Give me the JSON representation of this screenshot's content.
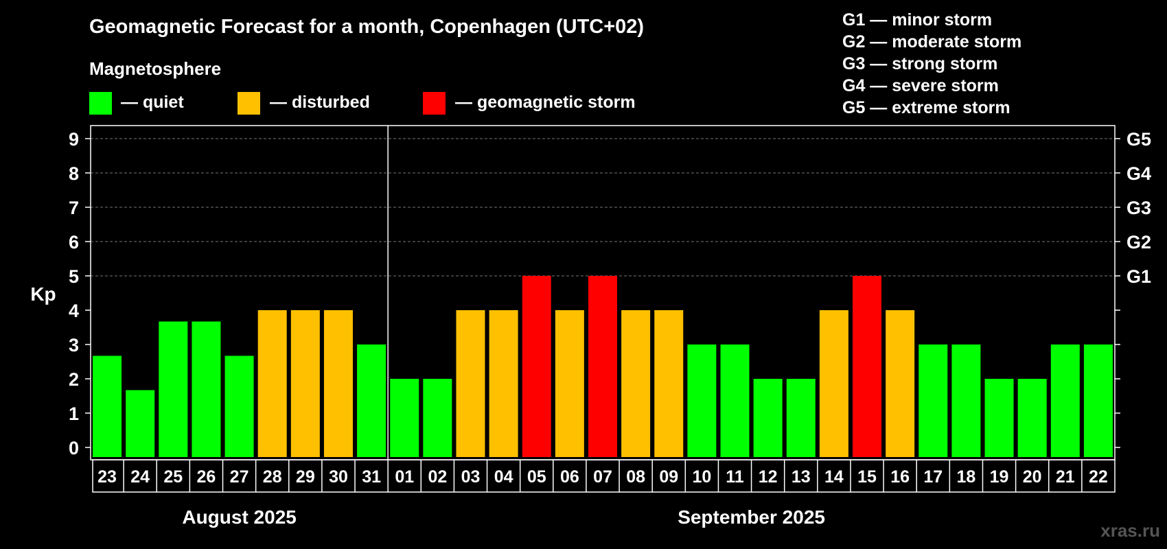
{
  "title": "Geomagnetic Forecast for a month, Copenhagen (UTC+02)",
  "magnetosphere_label": "Magnetosphere",
  "legend": [
    {
      "label": "— quiet",
      "color": "#00ff00"
    },
    {
      "label": "— disturbed",
      "color": "#ffc000"
    },
    {
      "label": "— geomagnetic storm",
      "color": "#ff0000"
    }
  ],
  "storm_scale": [
    "G1 — minor storm",
    "G2 — moderate storm",
    "G3 — strong storm",
    "G4 — severe storm",
    "G5 — extreme storm"
  ],
  "months": [
    "August 2025",
    "September 2025"
  ],
  "credit": "xras.ru",
  "chart_data": {
    "type": "bar",
    "ylabel": "Kp",
    "ylim": [
      0,
      9
    ],
    "yticks": [
      "0",
      "1",
      "2",
      "3",
      "4",
      "5",
      "6",
      "7",
      "8",
      "9"
    ],
    "right_axis_labels": [
      {
        "kp": 5,
        "label": "G1"
      },
      {
        "kp": 6,
        "label": "G2"
      },
      {
        "kp": 7,
        "label": "G3"
      },
      {
        "kp": 8,
        "label": "G4"
      },
      {
        "kp": 9,
        "label": "G5"
      }
    ],
    "grid": "dashed horizontal at 5–9",
    "categories": [
      "23",
      "24",
      "25",
      "26",
      "27",
      "28",
      "29",
      "30",
      "31",
      "01",
      "02",
      "03",
      "04",
      "05",
      "06",
      "07",
      "08",
      "09",
      "10",
      "11",
      "12",
      "13",
      "14",
      "15",
      "16",
      "17",
      "18",
      "19",
      "20",
      "21",
      "22"
    ],
    "values": [
      2.67,
      1.67,
      3.67,
      3.67,
      2.67,
      4,
      4,
      4,
      3,
      2,
      2,
      4,
      4,
      5,
      4,
      5,
      4,
      4,
      3,
      3,
      2,
      2,
      4,
      5,
      4,
      3,
      3,
      2,
      2,
      3,
      3
    ],
    "status": [
      "quiet",
      "quiet",
      "quiet",
      "quiet",
      "quiet",
      "disturbed",
      "disturbed",
      "disturbed",
      "quiet",
      "quiet",
      "quiet",
      "disturbed",
      "disturbed",
      "storm",
      "disturbed",
      "storm",
      "disturbed",
      "disturbed",
      "quiet",
      "quiet",
      "quiet",
      "quiet",
      "disturbed",
      "storm",
      "disturbed",
      "quiet",
      "quiet",
      "quiet",
      "quiet",
      "quiet",
      "quiet"
    ],
    "month_of_day": [
      0,
      0,
      0,
      0,
      0,
      0,
      0,
      0,
      0,
      1,
      1,
      1,
      1,
      1,
      1,
      1,
      1,
      1,
      1,
      1,
      1,
      1,
      1,
      1,
      1,
      1,
      1,
      1,
      1,
      1,
      1
    ],
    "colors": {
      "quiet": "#00ff00",
      "disturbed": "#ffc000",
      "storm": "#ff0000"
    }
  }
}
